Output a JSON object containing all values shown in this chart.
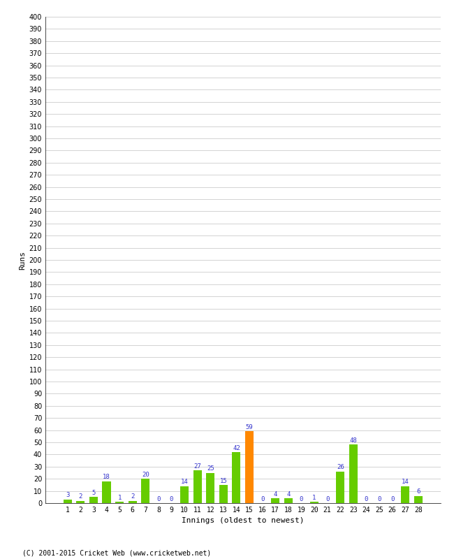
{
  "title": "",
  "xlabel": "Innings (oldest to newest)",
  "ylabel": "Runs",
  "categories": [
    1,
    2,
    3,
    4,
    5,
    6,
    7,
    8,
    9,
    10,
    11,
    12,
    13,
    14,
    15,
    16,
    17,
    18,
    19,
    20,
    21,
    22,
    23,
    24,
    25,
    26,
    27,
    28
  ],
  "values": [
    3,
    2,
    5,
    18,
    1,
    2,
    20,
    0,
    0,
    14,
    27,
    25,
    15,
    42,
    59,
    0,
    4,
    4,
    0,
    1,
    0,
    26,
    48,
    0,
    0,
    0,
    14,
    6
  ],
  "bar_colors": [
    "#66cc00",
    "#66cc00",
    "#66cc00",
    "#66cc00",
    "#66cc00",
    "#66cc00",
    "#66cc00",
    "#66cc00",
    "#66cc00",
    "#66cc00",
    "#66cc00",
    "#66cc00",
    "#66cc00",
    "#66cc00",
    "#ff8800",
    "#66cc00",
    "#66cc00",
    "#66cc00",
    "#66cc00",
    "#66cc00",
    "#66cc00",
    "#66cc00",
    "#66cc00",
    "#66cc00",
    "#66cc00",
    "#66cc00",
    "#66cc00",
    "#66cc00"
  ],
  "ylim": [
    0,
    400
  ],
  "ytick_step": 10,
  "label_color": "#3333cc",
  "bg_color": "#ffffff",
  "grid_color": "#cccccc",
  "footer": "(C) 2001-2015 Cricket Web (www.cricketweb.net)",
  "tick_fontsize": 7,
  "label_fontsize": 8,
  "bar_width": 0.65
}
